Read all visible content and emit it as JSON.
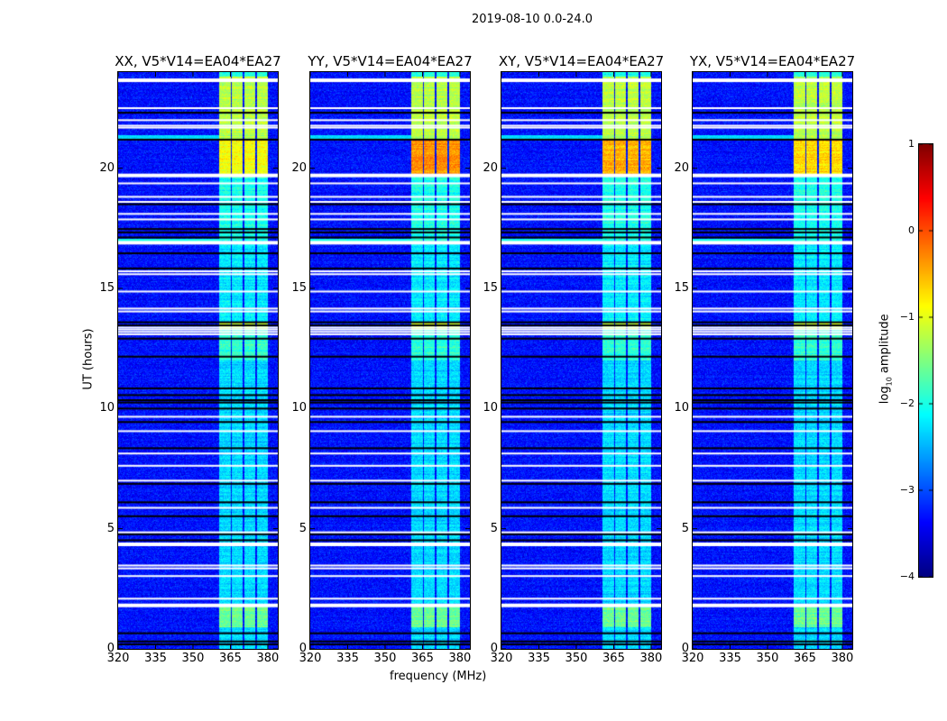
{
  "suptitle": "2019-08-10 0.0-24.0",
  "chart_data": {
    "type": "heatmap",
    "title": "2019-08-10 0.0-24.0",
    "xlabel": "frequency (MHz)",
    "ylabel": "UT (hours)",
    "xlim": [
      320,
      384
    ],
    "ylim": [
      0,
      24
    ],
    "xticks": [
      "320",
      "335",
      "350",
      "365",
      "380"
    ],
    "xtick_values": [
      320,
      335,
      350,
      365,
      380
    ],
    "yticks": [
      "0",
      "5",
      "10",
      "15",
      "20"
    ],
    "ytick_values": [
      0,
      5,
      10,
      15,
      20
    ],
    "panels": [
      {
        "title": "XX, V5*V14=EA04*EA27",
        "peak_level": -0.9
      },
      {
        "title": "YY, V5*V14=EA04*EA27",
        "peak_level": -0.35
      },
      {
        "title": "XY, V5*V14=EA04*EA27",
        "peak_level": -0.5
      },
      {
        "title": "YX, V5*V14=EA04*EA27",
        "peak_level": -0.7
      }
    ],
    "colorbar": {
      "label": "log10 amplitude",
      "label_main": "log",
      "label_sub": "10",
      "label_rest": " amplitude",
      "range": [
        -4,
        1
      ],
      "ticks": [
        "1",
        "0",
        "−1",
        "−2",
        "−3",
        "−4"
      ],
      "tick_values": [
        1,
        0,
        -1,
        -2,
        -3,
        -4
      ],
      "colormap": "jet"
    },
    "background_level": -3.3,
    "signal_bands_mhz": [
      [
        360.6,
        365.2
      ],
      [
        365.6,
        370.0
      ],
      [
        370.5,
        375.1
      ],
      [
        375.7,
        379.9
      ]
    ],
    "band_levels_by_time": [
      {
        "t": [
          0,
          0.9
        ],
        "level": -2.3
      },
      {
        "t": [
          0.9,
          1.8
        ],
        "level": -1.6
      },
      {
        "t": [
          1.8,
          12.0
        ],
        "level": -2.3
      },
      {
        "t": [
          12.0,
          13.3
        ],
        "level": -1.9
      },
      {
        "t": [
          13.3,
          13.6
        ],
        "level": -1.2
      },
      {
        "t": [
          13.6,
          17.0
        ],
        "level": -2.2
      },
      {
        "t": [
          17.0,
          19.7
        ],
        "level": -2.0
      },
      {
        "t": [
          19.7,
          21.2
        ],
        "level": "peak"
      },
      {
        "t": [
          21.2,
          23.8
        ],
        "level": -1.2
      },
      {
        "t": [
          23.8,
          24.0
        ],
        "level": -2.0
      }
    ],
    "full_width_rows": [
      {
        "t": 21.3,
        "level": -2.3
      },
      {
        "t": 17.0,
        "level": -2.0
      }
    ],
    "flagged_white_hours": [
      23.66,
      22.5,
      22.0,
      21.77,
      21.69,
      19.7,
      19.37,
      18.81,
      18.6,
      18.1,
      17.87,
      16.9,
      15.71,
      15.59,
      14.87,
      14.16,
      14.04,
      13.37,
      13.29,
      13.19,
      13.09,
      9.66,
      9.06,
      8.13,
      7.62,
      7.0,
      5.87,
      4.85,
      4.35,
      3.47,
      3.35,
      3.03,
      2.09,
      1.81
    ],
    "thick_white_hours": [
      23.66,
      19.7,
      16.9,
      4.35,
      1.81
    ],
    "flagged_black_hours": [
      22.31,
      21.19,
      18.5,
      17.47,
      17.33,
      17.12,
      16.46,
      15.83,
      13.59,
      13.46,
      12.91,
      12.16,
      10.84,
      10.56,
      10.35,
      10.25,
      10.0,
      9.44,
      8.35,
      6.87,
      6.1,
      5.52,
      4.77,
      4.52,
      0.65,
      0.31,
      0.19
    ]
  }
}
